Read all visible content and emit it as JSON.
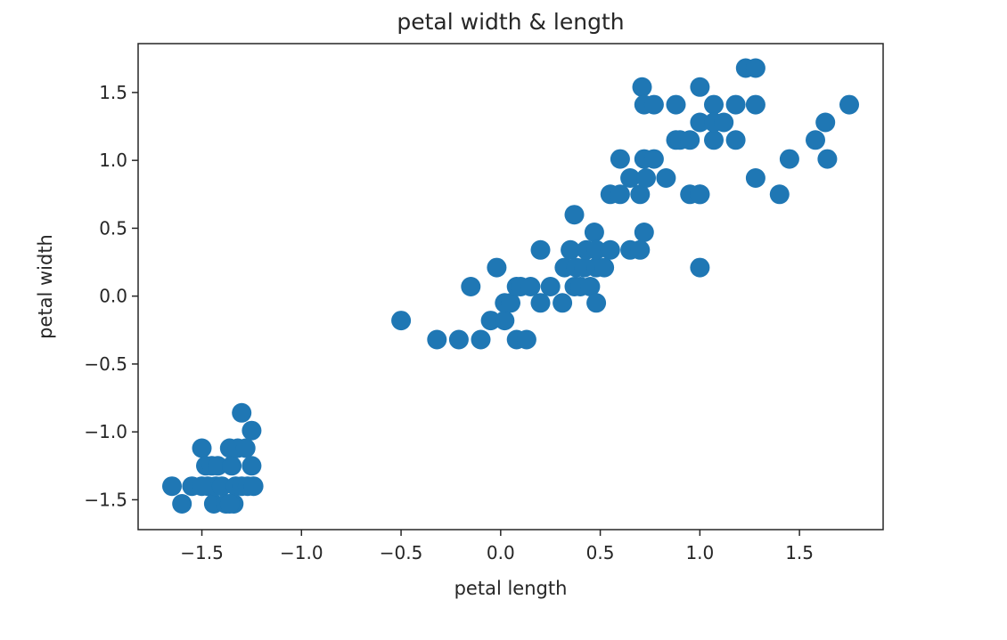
{
  "colors": {
    "marker": "#1f77b4",
    "axes": "#262626",
    "background": "#ffffff"
  },
  "chart_data": {
    "type": "scatter",
    "title": "petal width & length",
    "xlabel": "petal length",
    "ylabel": "petal width",
    "xlim": [
      -1.82,
      1.92
    ],
    "ylim": [
      -1.72,
      1.86
    ],
    "xticks": [
      -1.5,
      -1.0,
      -0.5,
      0.0,
      0.5,
      1.0,
      1.5
    ],
    "xtick_labels": [
      "−1.5",
      "−1.0",
      "−0.5",
      "0.0",
      "0.5",
      "1.0",
      "1.5"
    ],
    "yticks": [
      -1.5,
      -1.0,
      -0.5,
      0.0,
      0.5,
      1.0,
      1.5
    ],
    "ytick_labels": [
      "−1.5",
      "−1.0",
      "−0.5",
      "0.0",
      "0.5",
      "1.0",
      "1.5"
    ],
    "grid": false,
    "legend": "none",
    "series": [
      {
        "marker": "circle",
        "x": [
          -1.65,
          -1.6,
          -1.55,
          -1.5,
          -1.48,
          -1.47,
          -1.45,
          -1.44,
          -1.43,
          -1.42,
          -1.4,
          -1.38,
          -1.36,
          -1.35,
          -1.34,
          -1.33,
          -1.32,
          -1.3,
          -1.3,
          -1.28,
          -1.27,
          -1.25,
          -1.25,
          -1.24,
          -1.5,
          -1.36,
          -0.5,
          -0.32,
          -0.21,
          -0.15,
          -0.1,
          -0.05,
          -0.02,
          0.02,
          0.02,
          0.05,
          0.08,
          0.08,
          0.1,
          0.13,
          0.15,
          0.2,
          0.2,
          0.25,
          0.31,
          0.32,
          0.35,
          0.37,
          0.37,
          0.38,
          0.4,
          0.42,
          0.43,
          0.45,
          0.47,
          0.48,
          0.48,
          0.48,
          0.52,
          0.55,
          0.55,
          0.6,
          0.6,
          0.65,
          0.65,
          0.7,
          0.7,
          0.71,
          0.72,
          0.72,
          0.72,
          0.73,
          0.77,
          0.77,
          0.83,
          0.88,
          0.88,
          0.9,
          0.95,
          0.95,
          1.0,
          1.0,
          1.0,
          1.0,
          1.0,
          1.07,
          1.07,
          1.07,
          1.12,
          1.18,
          1.18,
          1.23,
          1.28,
          1.28,
          1.28,
          1.4,
          1.45,
          1.58,
          1.63,
          1.64,
          1.75
        ],
        "y": [
          -1.4,
          -1.53,
          -1.4,
          -1.12,
          -1.25,
          -1.4,
          -1.25,
          -1.53,
          -1.4,
          -1.25,
          -1.4,
          -1.53,
          -1.12,
          -1.25,
          -1.53,
          -1.4,
          -1.12,
          -0.86,
          -1.4,
          -1.12,
          -1.4,
          -0.99,
          -1.25,
          -1.4,
          -1.4,
          -1.53,
          -0.18,
          -0.32,
          -0.32,
          0.07,
          -0.32,
          -0.18,
          0.21,
          -0.18,
          -0.05,
          -0.05,
          0.07,
          -0.32,
          0.07,
          -0.32,
          0.07,
          0.34,
          -0.05,
          0.07,
          -0.05,
          0.21,
          0.34,
          0.6,
          0.07,
          0.21,
          0.07,
          0.21,
          0.34,
          0.07,
          0.47,
          0.21,
          0.34,
          -0.05,
          0.21,
          0.34,
          0.75,
          1.01,
          0.75,
          0.87,
          0.34,
          0.34,
          0.75,
          1.54,
          1.41,
          1.01,
          0.47,
          0.87,
          1.41,
          1.01,
          0.87,
          1.41,
          1.15,
          1.15,
          0.75,
          1.15,
          1.54,
          1.28,
          0.75,
          0.75,
          0.21,
          1.41,
          1.15,
          1.28,
          1.28,
          1.41,
          1.15,
          1.68,
          1.68,
          1.41,
          0.87,
          0.75,
          1.01,
          1.15,
          1.28,
          1.01,
          1.41
        ]
      }
    ]
  }
}
